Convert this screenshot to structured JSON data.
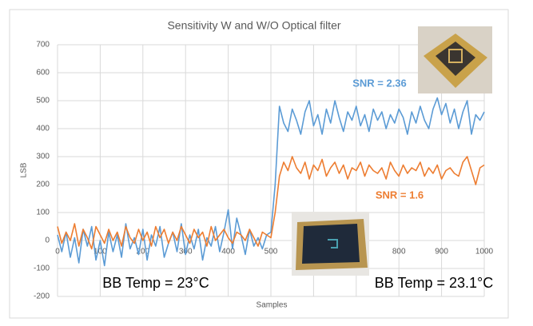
{
  "chart_data": {
    "type": "line",
    "title": "Sensitivity W and W/O Optical filter",
    "x_label": "Samples",
    "y_label": "LSB",
    "xlim": [
      0,
      1000
    ],
    "xticks": [
      0,
      100,
      200,
      300,
      400,
      500,
      600,
      700,
      800,
      900,
      1000
    ],
    "ylim": [
      -200,
      700
    ],
    "yticks": [
      -200,
      -100,
      0,
      100,
      200,
      300,
      400,
      500,
      600,
      700
    ],
    "grid": true,
    "x": [
      0,
      10,
      20,
      30,
      40,
      50,
      60,
      70,
      80,
      90,
      100,
      110,
      120,
      130,
      140,
      150,
      160,
      170,
      180,
      190,
      200,
      210,
      220,
      230,
      240,
      250,
      260,
      270,
      280,
      290,
      300,
      310,
      320,
      330,
      340,
      350,
      360,
      370,
      380,
      390,
      400,
      410,
      420,
      430,
      440,
      450,
      460,
      470,
      480,
      490,
      500,
      510,
      520,
      530,
      540,
      550,
      560,
      570,
      580,
      590,
      600,
      610,
      620,
      630,
      640,
      650,
      660,
      670,
      680,
      690,
      700,
      710,
      720,
      730,
      740,
      750,
      760,
      770,
      780,
      790,
      800,
      810,
      820,
      830,
      840,
      850,
      860,
      870,
      880,
      890,
      900,
      910,
      920,
      930,
      940,
      950,
      960,
      970,
      980,
      990,
      1000
    ],
    "series": [
      {
        "color": "#5b9bd5",
        "values": [
          20,
          -40,
          30,
          -60,
          10,
          -80,
          40,
          -20,
          50,
          -70,
          0,
          -90,
          30,
          -40,
          20,
          -60,
          60,
          -30,
          10,
          -50,
          40,
          -70,
          20,
          -20,
          50,
          -60,
          -10,
          30,
          -40,
          60,
          -50,
          20,
          -30,
          40,
          -70,
          10,
          -20,
          50,
          -40,
          30,
          110,
          -30,
          80,
          20,
          -50,
          40,
          -20,
          10,
          -30,
          20,
          30,
          200,
          480,
          420,
          390,
          470,
          430,
          380,
          460,
          500,
          410,
          450,
          380,
          470,
          420,
          500,
          440,
          390,
          460,
          430,
          480,
          410,
          450,
          390,
          470,
          430,
          460,
          400,
          450,
          420,
          470,
          440,
          380,
          460,
          420,
          480,
          430,
          400,
          470,
          510,
          450,
          490,
          420,
          470,
          400,
          460,
          500,
          380,
          450,
          430,
          460
        ]
      },
      {
        "color": "#ed7d31",
        "values": [
          50,
          -10,
          30,
          0,
          60,
          -20,
          40,
          10,
          -30,
          50,
          20,
          -10,
          40,
          0,
          30,
          -20,
          50,
          10,
          -10,
          40,
          0,
          30,
          -20,
          50,
          10,
          40,
          -10,
          30,
          0,
          50,
          20,
          -10,
          40,
          10,
          30,
          -20,
          50,
          0,
          20,
          40,
          10,
          -10,
          30,
          20,
          0,
          40,
          10,
          -20,
          30,
          20,
          10,
          100,
          230,
          280,
          250,
          300,
          260,
          240,
          280,
          220,
          270,
          250,
          290,
          230,
          260,
          280,
          240,
          270,
          220,
          260,
          250,
          280,
          230,
          270,
          250,
          240,
          260,
          220,
          280,
          250,
          230,
          270,
          240,
          260,
          250,
          280,
          230,
          260,
          240,
          270,
          220,
          250,
          260,
          240,
          230,
          280,
          300,
          250,
          200,
          260,
          270
        ]
      }
    ],
    "annotations": [
      {
        "text": "SNR = 2.36",
        "color": "#5b9bd5"
      },
      {
        "text": "SNR = 1.6",
        "color": "#ed7d31"
      },
      {
        "text": "BB Temp = 23°C",
        "color": "#000000"
      },
      {
        "text": "BB Temp = 23.1°C",
        "color": "#000000"
      }
    ]
  }
}
